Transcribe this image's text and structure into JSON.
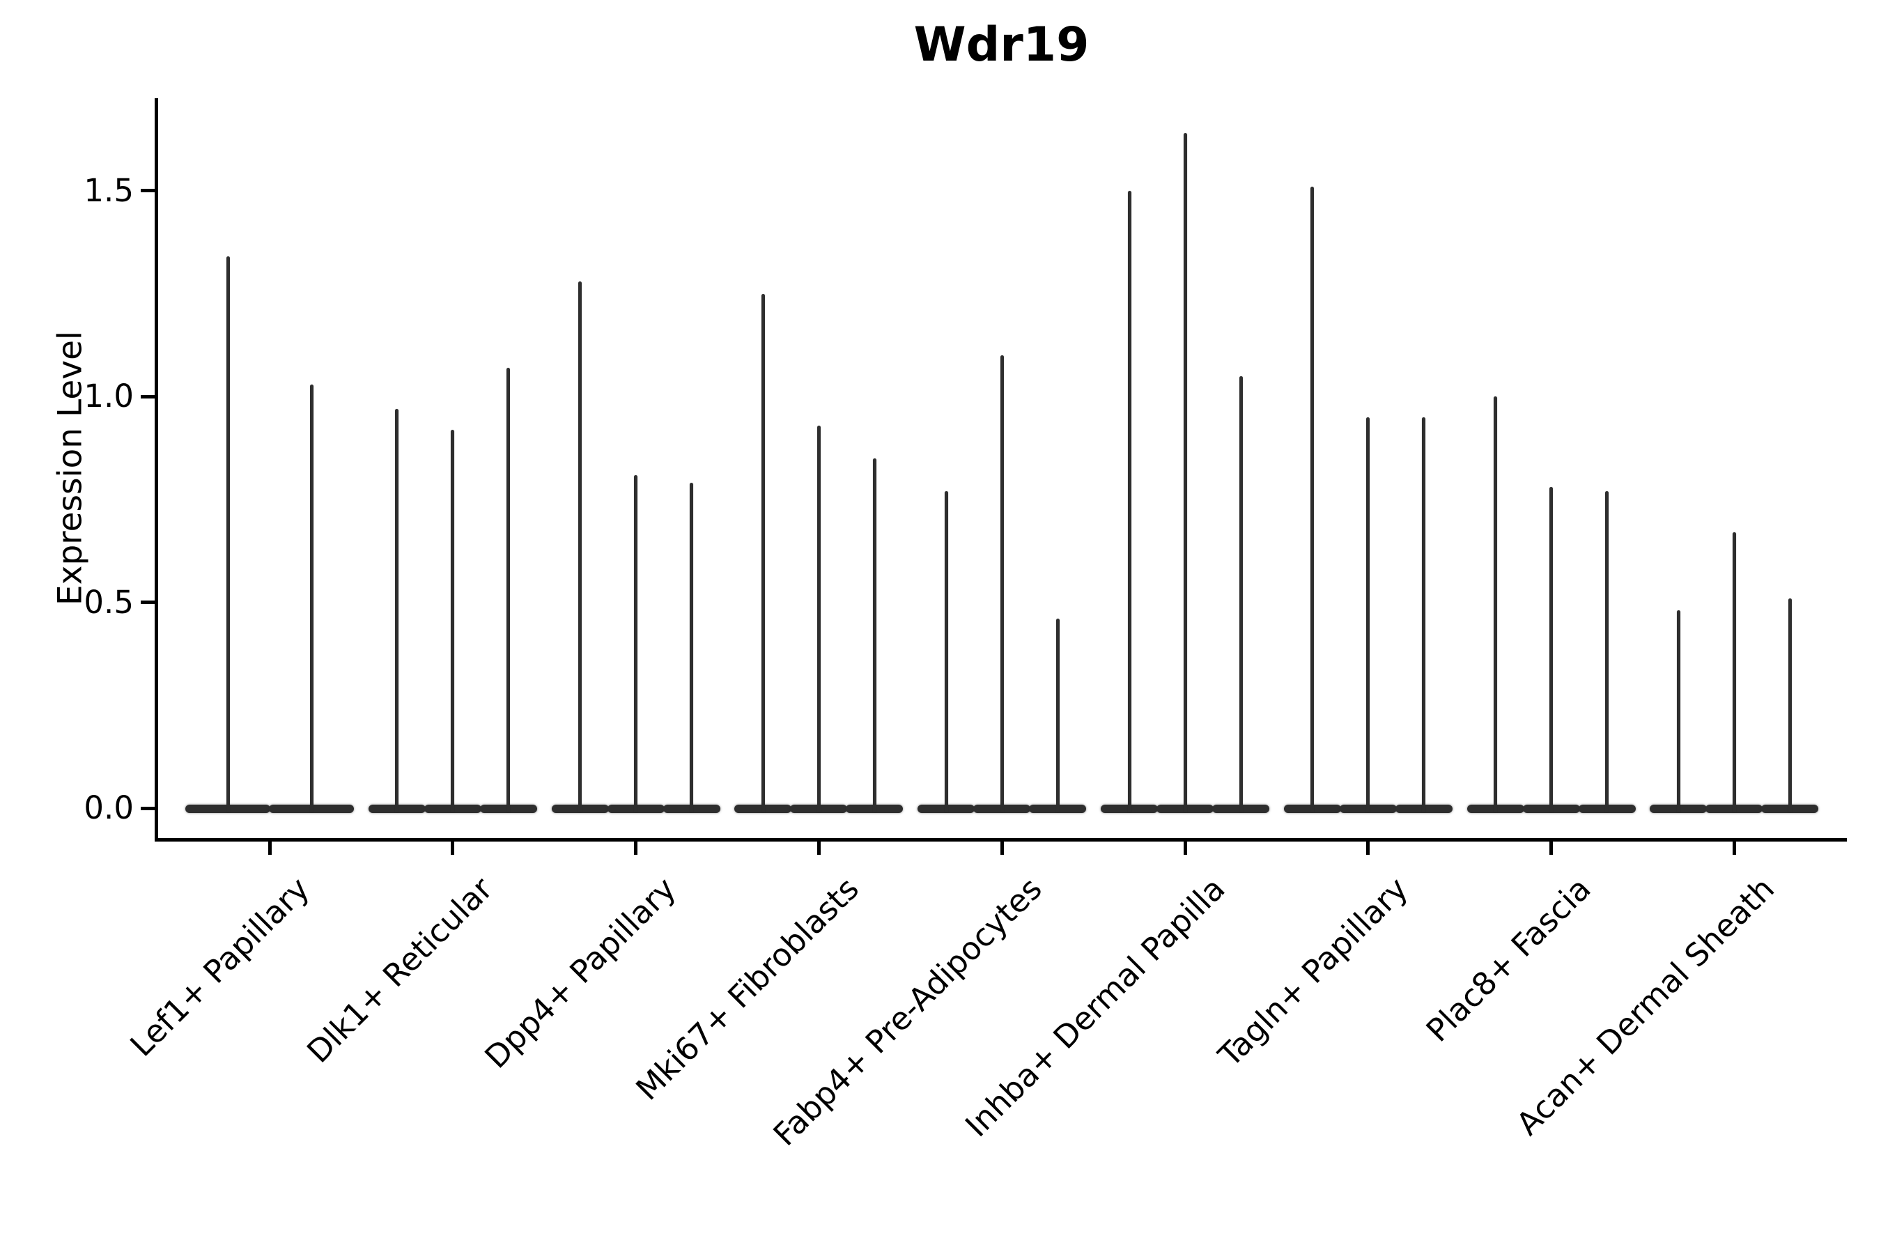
{
  "title": "Wdr19",
  "chart_data": {
    "type": "violin",
    "title": "Wdr19",
    "xlabel": "",
    "ylabel": "Expression Level",
    "yticks": [
      0.0,
      0.5,
      1.0,
      1.5
    ],
    "ytick_labels": [
      "0.0",
      "0.5",
      "1.0",
      "1.5"
    ],
    "ylim": [
      -0.08,
      1.72
    ],
    "grid": false,
    "legend": "none",
    "x_tick_rotation_deg": 45,
    "description": "Single-cell violin plot of Wdr19 expression; each category shows very thin violins (2 for the first category, 3 for the others) that sit on a flat dense base at 0 with a narrow spike rising to the maximum expression value.",
    "categories": [
      "Lef1+ Papillary",
      "Dlk1+ Reticular",
      "Dpp4+ Papillary",
      "Mki67+ Fibroblasts",
      "Fabp4+ Pre-Adipocytes",
      "Inhba+ Dermal Papilla",
      "Tagln+ Papillary",
      "Plac8+ Fascia",
      "Acan+ Dermal Sheath"
    ],
    "violin_max_values": [
      [
        1.34,
        1.03
      ],
      [
        0.97,
        0.92,
        1.07
      ],
      [
        1.28,
        0.81,
        0.79
      ],
      [
        1.25,
        0.93,
        0.85
      ],
      [
        0.77,
        1.1,
        0.46
      ],
      [
        1.5,
        1.64,
        1.05
      ],
      [
        1.51,
        0.95,
        0.95
      ],
      [
        1.0,
        0.78,
        0.77
      ],
      [
        0.48,
        0.67,
        0.51
      ]
    ],
    "baseline_value": 0.0,
    "colors": {
      "violin": "#2e2e2e",
      "axis": "#000000",
      "text": "#000000",
      "background": "#ffffff"
    }
  }
}
